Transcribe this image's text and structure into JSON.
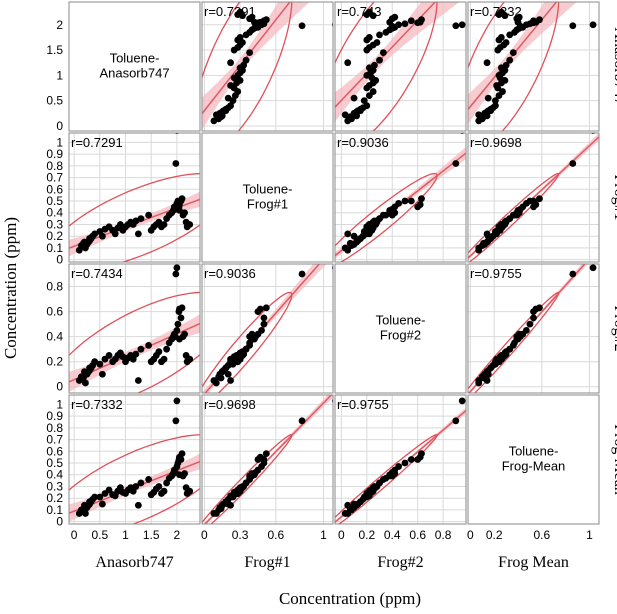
{
  "figure": {
    "ylabel": "Concentration (ppm)",
    "xlabel": "Concentration (ppm)"
  },
  "chart_data": {
    "type": "scatter",
    "title": "",
    "grid": true,
    "variables": [
      "Anasorb747",
      "Frog#1",
      "Frog#2",
      "Frog Mean"
    ],
    "column_labels": [
      "Anasorb747",
      "Frog#1",
      "Frog#2",
      "Frog Mean"
    ],
    "row_labels": [
      "Anasorb747",
      "Frog#1",
      "Frog#2",
      "Frog Mean"
    ],
    "diagonal_labels": [
      [
        "Toluene-",
        "Anasorb747"
      ],
      [
        "Toluene-",
        "Frog#1"
      ],
      [
        "Toluene-",
        "Frog#2"
      ],
      [
        "Toluene-",
        "Frog-Mean"
      ]
    ],
    "x_ticks": [
      [
        "0",
        "0.5",
        "1",
        "1.5",
        "2"
      ],
      [
        "0",
        "0.3",
        "0.6",
        "1"
      ],
      [
        "0",
        "0.2",
        "0.4",
        "0.6",
        "0.8"
      ],
      [
        "0",
        "0.2",
        "0.6",
        "1"
      ]
    ],
    "x_tick_values": [
      [
        0,
        0.5,
        1,
        1.5,
        2
      ],
      [
        0,
        0.3,
        0.6,
        1
      ],
      [
        0,
        0.2,
        0.4,
        0.6,
        0.8
      ],
      [
        0,
        0.2,
        0.6,
        1
      ]
    ],
    "y_ticks": [
      [
        "0",
        "0.5",
        "1",
        "1.5",
        "2"
      ],
      [
        "0",
        "0.1",
        "0.2",
        "0.3",
        "0.4",
        "0.5",
        "0.6",
        "0.7",
        "0.8",
        "0.9",
        "1"
      ],
      [
        "0",
        "0.2",
        "0.4",
        "0.6",
        "0.8"
      ],
      [
        "0",
        "0.1",
        "0.2",
        "0.3",
        "0.4",
        "0.5",
        "0.6",
        "0.7",
        "0.8",
        "0.9",
        "1"
      ]
    ],
    "y_tick_values": [
      [
        0,
        0.5,
        1,
        1.5,
        2
      ],
      [
        0,
        0.1,
        0.2,
        0.3,
        0.4,
        0.5,
        0.6,
        0.7,
        0.8,
        0.9,
        1
      ],
      [
        0,
        0.2,
        0.4,
        0.6,
        0.8
      ],
      [
        0,
        0.1,
        0.2,
        0.3,
        0.4,
        0.5,
        0.6,
        0.7,
        0.8,
        0.9,
        1
      ]
    ],
    "axis_ranges": [
      [
        -0.1,
        2.45
      ],
      [
        -0.02,
        1.08
      ],
      [
        -0.05,
        0.98
      ],
      [
        -0.02,
        1.08
      ]
    ],
    "correlation_labels": [
      [
        "",
        "r=0.7291",
        "r=0.743",
        "r=0.7332"
      ],
      [
        "r=0.7291",
        "",
        "r=0.9036",
        "r=0.9698"
      ],
      [
        "r=0.7434",
        "r=0.9036",
        "",
        "r=0.9755"
      ],
      [
        "r=0.7332",
        "r=0.9698",
        "r=0.9755",
        ""
      ]
    ],
    "observations": {
      "Anasorb747": [
        0.1,
        0.14,
        0.18,
        0.22,
        0.25,
        0.28,
        0.3,
        0.33,
        0.36,
        0.4,
        0.5,
        0.55,
        0.6,
        0.68,
        0.75,
        0.8,
        0.85,
        0.9,
        0.95,
        1.0,
        1.05,
        1.1,
        1.15,
        1.2,
        1.25,
        1.3,
        1.45,
        1.5,
        1.55,
        1.6,
        1.65,
        1.7,
        1.75,
        1.8,
        1.85,
        1.9,
        1.93,
        1.95,
        1.97,
        2.0,
        2.02,
        2.04,
        2.05,
        2.08,
        2.1,
        2.12,
        2.15,
        2.18,
        2.2,
        2.25,
        2.05,
        0.2,
        0.3,
        2.0,
        1.98
      ],
      "Frog#1": [
        0.08,
        0.12,
        0.14,
        0.1,
        0.13,
        0.15,
        0.16,
        0.18,
        0.2,
        0.22,
        0.24,
        0.2,
        0.26,
        0.28,
        0.25,
        0.22,
        0.27,
        0.3,
        0.25,
        0.28,
        0.3,
        0.32,
        0.3,
        0.33,
        0.22,
        0.35,
        0.38,
        0.25,
        0.28,
        0.3,
        0.32,
        0.28,
        0.3,
        0.35,
        0.38,
        0.4,
        0.42,
        0.45,
        0.43,
        0.48,
        0.5,
        0.45,
        0.47,
        0.5,
        0.52,
        0.38,
        0.4,
        0.32,
        0.28,
        0.3,
        0.42,
        0.15,
        0.18,
        1.1,
        0.82
      ],
      "Frog#2": [
        0.05,
        0.08,
        0.07,
        0.03,
        0.1,
        0.12,
        0.13,
        0.15,
        0.17,
        0.2,
        0.18,
        0.1,
        0.22,
        0.25,
        0.2,
        0.22,
        0.25,
        0.27,
        0.24,
        0.2,
        0.23,
        0.25,
        0.22,
        0.26,
        0.05,
        0.3,
        0.33,
        0.2,
        0.22,
        0.25,
        0.28,
        0.2,
        0.22,
        0.3,
        0.35,
        0.38,
        0.4,
        0.42,
        0.4,
        0.45,
        0.5,
        0.6,
        0.62,
        0.55,
        0.63,
        0.4,
        0.42,
        0.25,
        0.2,
        0.22,
        0.38,
        0.12,
        0.15,
        0.95,
        0.9
      ],
      "Frog Mean": [
        0.07,
        0.1,
        0.11,
        0.07,
        0.12,
        0.14,
        0.15,
        0.17,
        0.19,
        0.21,
        0.21,
        0.15,
        0.24,
        0.27,
        0.23,
        0.22,
        0.26,
        0.29,
        0.25,
        0.24,
        0.27,
        0.29,
        0.26,
        0.3,
        0.14,
        0.33,
        0.36,
        0.23,
        0.25,
        0.28,
        0.3,
        0.24,
        0.26,
        0.33,
        0.37,
        0.39,
        0.41,
        0.44,
        0.42,
        0.47,
        0.5,
        0.53,
        0.55,
        0.53,
        0.58,
        0.39,
        0.41,
        0.29,
        0.24,
        0.26,
        0.4,
        0.14,
        0.17,
        1.03,
        0.86
      ]
    },
    "colors": {
      "points": "#000000",
      "fit_line": "#e05a63",
      "confidence_band": "#f4b9bf",
      "ellipse": "#e0505a",
      "grid": "#d9d9d9",
      "frame": "#888888"
    }
  }
}
